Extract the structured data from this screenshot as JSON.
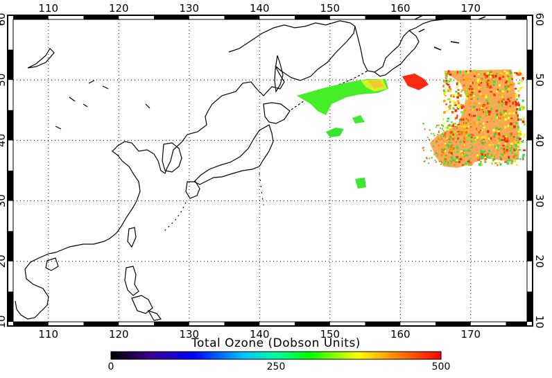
{
  "map": {
    "lon_range": [
      105,
      178
    ],
    "lat_range": [
      10,
      60
    ],
    "lon_ticks": [
      "110",
      "120",
      "130",
      "140",
      "150",
      "160",
      "170"
    ],
    "lat_ticks": [
      "10",
      "20",
      "30",
      "40",
      "50",
      "60"
    ],
    "grid": "dotted",
    "frame": "black checkered border"
  },
  "colorbar": {
    "title": "Total Ozone (Dobson Units)",
    "min_label": "0",
    "mid_label": "250",
    "max_label": "500",
    "colors": [
      "#000000",
      "#3a0090",
      "#0000ff",
      "#00c0ff",
      "#00ffa0",
      "#00ff00",
      "#ffff00",
      "#ff8000",
      "#ff0000"
    ]
  }
}
